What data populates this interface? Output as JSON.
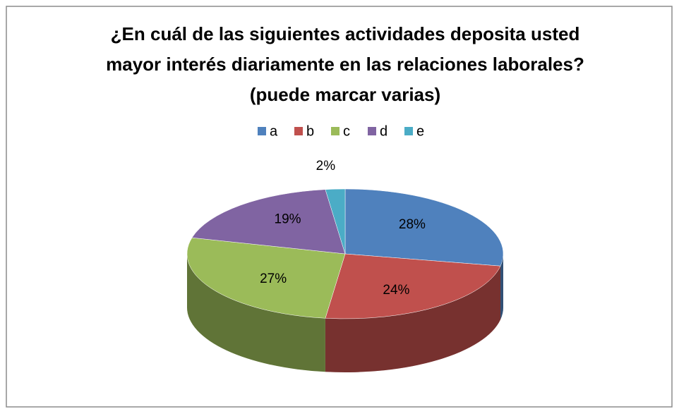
{
  "chart_data": {
    "type": "pie",
    "title": [
      "¿En cuál de las siguientes actividades  deposita usted",
      "mayor interés diariamente en las relaciones laborales?",
      "(puede marcar varias)"
    ],
    "categories": [
      "a",
      "b",
      "c",
      "d",
      "e"
    ],
    "values": [
      28,
      24,
      27,
      19,
      2
    ],
    "value_labels": [
      "28%",
      "24%",
      "27%",
      "19%",
      "2%"
    ],
    "colors": [
      "#4f81bd",
      "#c0504d",
      "#9bbb59",
      "#8064a2",
      "#4bacc6"
    ],
    "legend": "top"
  }
}
